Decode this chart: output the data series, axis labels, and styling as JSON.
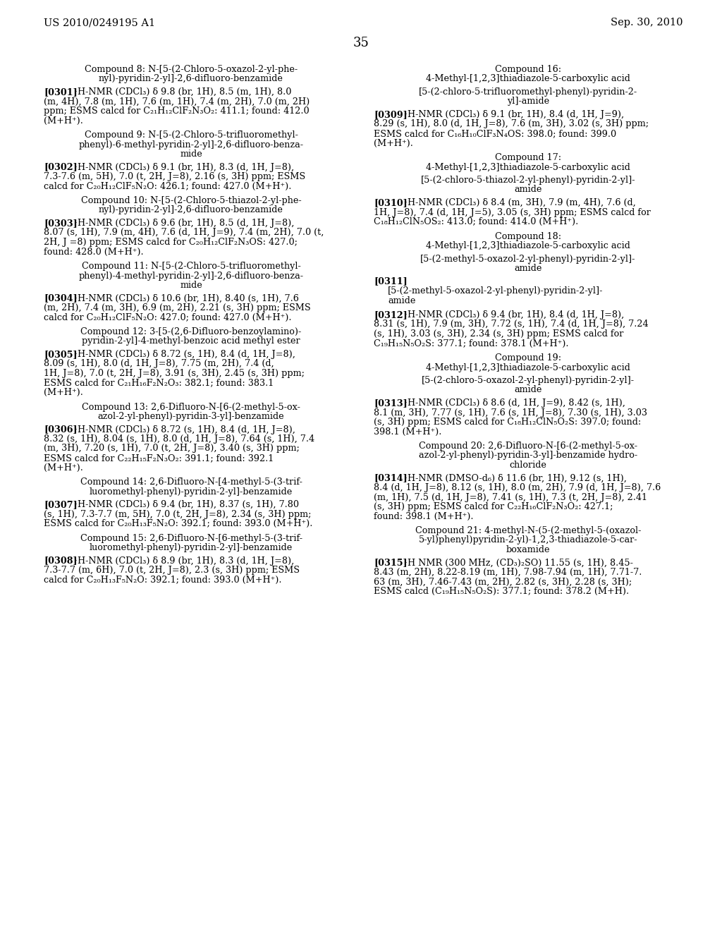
{
  "background_color": "#ffffff",
  "page_number": "35",
  "header_left": "US 2010/0249195 A1",
  "header_right": "Sep. 30, 2010",
  "left_blocks": [
    {
      "kind": "center",
      "lines": [
        "Compound 8: N-[5-(2-Chloro-5-oxazol-2-yl-phe-",
        "nyl)-pyridin-2-yl]-2,6-difluoro-benzamide"
      ]
    },
    {
      "kind": "para",
      "tag": "[0301]",
      "lines": [
        "¹H-NMR (CDCl₃) δ 9.8 (br, 1H), 8.5 (m, 1H), 8.0",
        "(m, 4H), 7.8 (m, 1H), 7.6 (m, 1H), 7.4 (m, 2H), 7.0 (m, 2H)",
        "ppm; ESMS calcd for C₂₁H₁₂ClF₂N₃O₂: 411.1; found: 412.0",
        "(M+H⁺)."
      ]
    },
    {
      "kind": "center",
      "lines": [
        "Compound 9: N-[5-(2-Chloro-5-trifluoromethyl-",
        "phenyl)-6-methyl-pyridin-2-yl]-2,6-difluoro-benza-",
        "mide"
      ]
    },
    {
      "kind": "para",
      "tag": "[0302]",
      "lines": [
        "¹H-NMR (CDCl₃) δ 9.1 (br, 1H), 8.3 (d, 1H, J=8),",
        "7.3-7.6 (m, 5H), 7.0 (t, 2H, J=8), 2.16 (s, 3H) ppm; ESMS",
        "calcd for C₂₀H₁₂ClF₅N₂O: 426.1; found: 427.0 (M+H⁺)."
      ]
    },
    {
      "kind": "center",
      "lines": [
        "Compound 10: N-[5-(2-Chloro-5-thiazol-2-yl-phe-",
        "nyl)-pyridin-2-yl]-2,6-difluoro-benzamide"
      ]
    },
    {
      "kind": "para",
      "tag": "[0303]",
      "lines": [
        "¹H-NMR (CDCl₃) δ 9.6 (br, 1H), 8.5 (d, 1H, J=8),",
        "8.07 (s, 1H), 7.9 (m, 4H), 7.6 (d, 1H, J=9), 7.4 (m, 2H), 7.0 (t,",
        "2H, J =8) ppm; ESMS calcd for C₂₀H₁₂ClF₂N₃OS: 427.0;",
        "found: 428.0 (M+H⁺)."
      ]
    },
    {
      "kind": "center",
      "lines": [
        "Compound 11: N-[5-(2-Chloro-5-trifluoromethyl-",
        "phenyl)-4-methyl-pyridin-2-yl]-2,6-difluoro-benza-",
        "mide"
      ]
    },
    {
      "kind": "para",
      "tag": "[0304]",
      "lines": [
        "¹H-NMR (CDCl₃) δ 10.6 (br, 1H), 8.40 (s, 1H), 7.6",
        "(m, 2H), 7.4 (m, 3H), 6.9 (m, 2H), 2.21 (s, 3H) ppm; ESMS",
        "calcd for C₂₀H₁₂ClF₅N₂O: 427.0; found: 427.0 (M+H⁺)."
      ]
    },
    {
      "kind": "center",
      "lines": [
        "Compound 12: 3-[5-(2,6-Difluoro-benzoylamino)-",
        "pyridin-2-yl]-4-methyl-benzoic acid methyl ester"
      ]
    },
    {
      "kind": "para",
      "tag": "[0305]",
      "lines": [
        "¹H-NMR (CDCl₃) δ 8.72 (s, 1H), 8.4 (d, 1H, J=8),",
        "8.09 (s, 1H), 8.0 (d, 1H, J=8), 7.75 (m, 2H), 7.4 (d,",
        "1H, J=8), 7.0 (t, 2H, J=8), 3.91 (s, 3H), 2.45 (s, 3H) ppm;",
        "ESMS calcd for C₂₁H₁₆F₂N₂O₃: 382.1; found: 383.1",
        "(M+H⁺)."
      ]
    },
    {
      "kind": "center",
      "lines": [
        "Compound 13: 2,6-Difluoro-N-[6-(2-methyl-5-ox-",
        "azol-2-yl-phenyl)-pyridin-3-yl]-benzamide"
      ]
    },
    {
      "kind": "para",
      "tag": "[0306]",
      "lines": [
        "¹H-NMR (CDCl₃) δ 8.72 (s, 1H), 8.4 (d, 1H, J=8),",
        "8.32 (s, 1H), 8.04 (s, 1H), 8.0 (d, 1H, J=8), 7.64 (s, 1H), 7.4",
        "(m, 3H), 7.20 (s, 1H), 7.0 (t, 2H, J=8), 3.40 (s, 3H) ppm;",
        "ESMS calcd for C₂₂H₁₅F₂N₃O₂: 391.1; found: 392.1",
        "(M+H⁺)."
      ]
    },
    {
      "kind": "center",
      "lines": [
        "Compound 14: 2,6-Difluoro-N-[4-methyl-5-(3-trif-",
        "luoromethyl-phenyl)-pyridin-2-yl]-benzamide"
      ]
    },
    {
      "kind": "para",
      "tag": "[0307]",
      "lines": [
        "¹H-NMR (CDCl₃) δ 9.4 (br, 1H), 8.37 (s, 1H), 7.80",
        "(s, 1H), 7.3-7.7 (m, 5H), 7.0 (t, 2H, J=8), 2.34 (s, 3H) ppm;",
        "ESMS calcd for C₂₀H₁₃F₅N₂O: 392.1; found: 393.0 (M+H⁺)."
      ]
    },
    {
      "kind": "center",
      "lines": [
        "Compound 15: 2,6-Difluoro-N-[6-methyl-5-(3-trif-",
        "luoromethyl-phenyl)-pyridin-2-yl]-benzamide"
      ]
    },
    {
      "kind": "para",
      "tag": "[0308]",
      "lines": [
        "¹H-NMR (CDCl₃) δ 8.9 (br, 1H), 8.3 (d, 1H, J=8),",
        "7.3-7.7 (m, 6H), 7.0 (t, 2H, J=8), 2.3 (s, 3H) ppm; ESMS",
        "calcd for C₂₀H₁₃F₅N₂O: 392.1; found: 393.0 (M+H⁺)."
      ]
    }
  ],
  "right_blocks": [
    {
      "kind": "center",
      "lines": [
        "Compound 16:",
        "4-Methyl-[1,2,3]thiadiazole-5-carboxylic acid"
      ]
    },
    {
      "kind": "center",
      "lines": [
        "[5-(2-chloro-5-trifluoromethyl-phenyl)-pyridin-2-",
        "yl]-amide"
      ]
    },
    {
      "kind": "para",
      "tag": "[0309]",
      "lines": [
        "¹H-NMR (CDCl₃) δ 9.1 (br, 1H), 8.4 (d, 1H, J=9),",
        "8.29 (s, 1H), 8.0 (d, 1H, J=8), 7.6 (m, 3H), 3.02 (s, 3H) ppm;",
        "ESMS calcd for C₁₆H₁₀ClF₃N₄OS: 398.0; found: 399.0",
        "(M+H⁺)."
      ]
    },
    {
      "kind": "center",
      "lines": [
        "Compound 17:",
        "4-Methyl-[1,2,3]thiadiazole-5-carboxylic acid"
      ]
    },
    {
      "kind": "center",
      "lines": [
        "[5-(2-chloro-5-thiazol-2-yl-phenyl)-pyridin-2-yl]-",
        "amide"
      ]
    },
    {
      "kind": "para",
      "tag": "[0310]",
      "lines": [
        "¹H-NMR (CDCl₃) δ 8.4 (m, 3H), 7.9 (m, 4H), 7.6 (d,",
        "1H, J=8), 7.4 (d, 1H, J=5), 3.05 (s, 3H) ppm; ESMS calcd for",
        "C₁₈H₁₂ClN₅OS₂: 413.0; found: 414.0 (M+H⁺)."
      ]
    },
    {
      "kind": "center",
      "lines": [
        "Compound 18:",
        "4-Methyl-[1,2,3]thiadiazole-5-carboxylic acid"
      ]
    },
    {
      "kind": "center",
      "lines": [
        "[5-(2-methyl-5-oxazol-2-yl-phenyl)-pyridin-2-yl]-",
        "amide"
      ]
    },
    {
      "kind": "para_tag_only",
      "tag": "[0311]",
      "lines": [
        "[5-(2-methyl-5-oxazol-2-yl-phenyl)-pyridin-2-yl]-",
        "amide"
      ]
    },
    {
      "kind": "para",
      "tag": "[0312]",
      "lines": [
        "¹H-NMR (CDCl₃) δ 9.4 (br, 1H), 8.4 (d, 1H, J=8),",
        "8.31 (s, 1H), 7.9 (m, 3H), 7.72 (s, 1H), 7.4 (d, 1H, J=8), 7.24",
        "(s, 1H), 3.03 (s, 3H), 2.34 (s, 3H) ppm; ESMS calcd for",
        "C₁₉H₁₅N₅O₂S: 377.1; found: 378.1 (M+H⁺)."
      ]
    },
    {
      "kind": "center",
      "lines": [
        "Compound 19:",
        "4-Methyl-[1,2,3]thiadiazole-5-carboxylic acid"
      ]
    },
    {
      "kind": "center",
      "lines": [
        "[5-(2-chloro-5-oxazol-2-yl-phenyl)-pyridin-2-yl]-",
        "amide"
      ]
    },
    {
      "kind": "para",
      "tag": "[0313]",
      "lines": [
        "¹H-NMR (CDCl₃) δ 8.6 (d, 1H, J=9), 8.42 (s, 1H),",
        "8.1 (m, 3H), 7.77 (s, 1H), 7.6 (s, 1H, J=8), 7.30 (s, 1H), 3.03",
        "(s, 3H) ppm; ESMS calcd for C₁₈H₁₂ClN₅O₂S: 397.0; found:",
        "398.1 (M+H⁺)."
      ]
    },
    {
      "kind": "center",
      "lines": [
        "Compound 20: 2,6-Difluoro-N-[6-(2-methyl-5-ox-",
        "azol-2-yl-phenyl)-pyridin-3-yl]-benzamide hydro-",
        "chloride"
      ]
    },
    {
      "kind": "para",
      "tag": "[0314]",
      "lines": [
        "¹H-NMR (DMSO-d₆) δ 11.6 (br, 1H), 9.12 (s, 1H),",
        "8.4 (d, 1H, J=8), 8.12 (s, 1H), 8.0 (m, 2H), 7.9 (d, 1H, J=8), 7.6",
        "(m, 1H), 7.5 (d, 1H, J=8), 7.41 (s, 1H), 7.3 (t, 2H, J=8), 2.41",
        "(s, 3H) ppm; ESMS calcd for C₂₂H₁₆ClF₂N₃O₂: 427.1;",
        "found: 398.1 (M+H⁺)."
      ]
    },
    {
      "kind": "center",
      "lines": [
        "Compound 21: 4-methyl-N-(5-(2-methyl-5-(oxazol-",
        "5-yl)phenyl)pyridin-2-yl)-1,2,3-thiadiazole-5-car-",
        "boxamide"
      ]
    },
    {
      "kind": "para",
      "tag": "[0315]",
      "lines": [
        "¹H NMR (300 MHz, (CD₃)₂SO) 11.55 (s, 1H), 8.45-",
        "8.43 (m, 2H), 8.22-8.19 (m, 1H), 7.98-7.94 (m, 1H), 7.71-7.",
        "63 (m, 3H), 7.46-7.43 (m, 2H), 2.82 (s, 3H), 2.28 (s, 3H);",
        "ESMS calcd (C₁₉H₁₅N₅O₂S): 377.1; found: 378.2 (M+H)."
      ]
    }
  ]
}
